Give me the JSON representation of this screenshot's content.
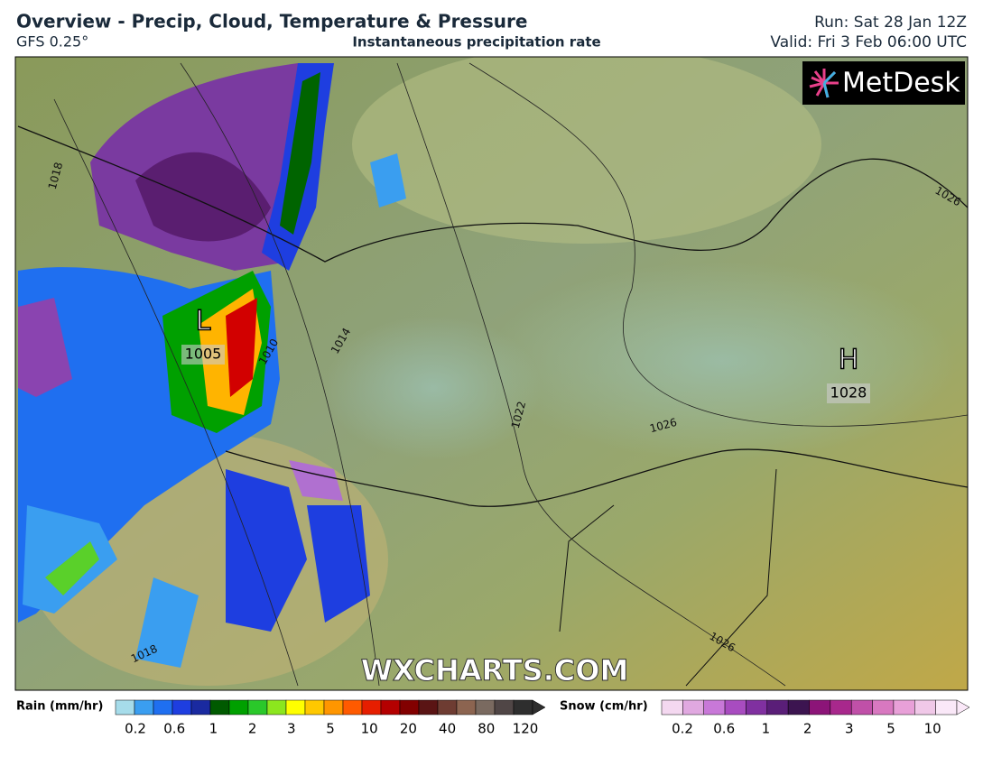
{
  "header": {
    "title": "Overview - Precip, Cloud, Temperature & Pressure",
    "model": "GFS 0.25°",
    "subtitle": "Instantaneous precipitation rate",
    "run": "Run: Sat 28 Jan 12Z",
    "valid": "Valid: Fri 3 Feb 06:00 UTC"
  },
  "logo": "MetDesk",
  "watermark": "WXCHARTS.COM",
  "map": {
    "pressure_centers": [
      {
        "symbol": "L",
        "value": 1005
      },
      {
        "symbol": "H",
        "value": 1028
      }
    ],
    "isobar_labels": [
      1018,
      1010,
      1014,
      1022,
      1026,
      1026,
      1018,
      1026
    ]
  },
  "legend": {
    "rain": {
      "label": "Rain (mm/hr)",
      "ticks": [
        0.2,
        0.6,
        1,
        2,
        3,
        5,
        10,
        20,
        40,
        80,
        120
      ]
    },
    "snow": {
      "label": "Snow (cm/hr)",
      "ticks": [
        0.2,
        0.6,
        1,
        2,
        3,
        5,
        10
      ]
    }
  }
}
